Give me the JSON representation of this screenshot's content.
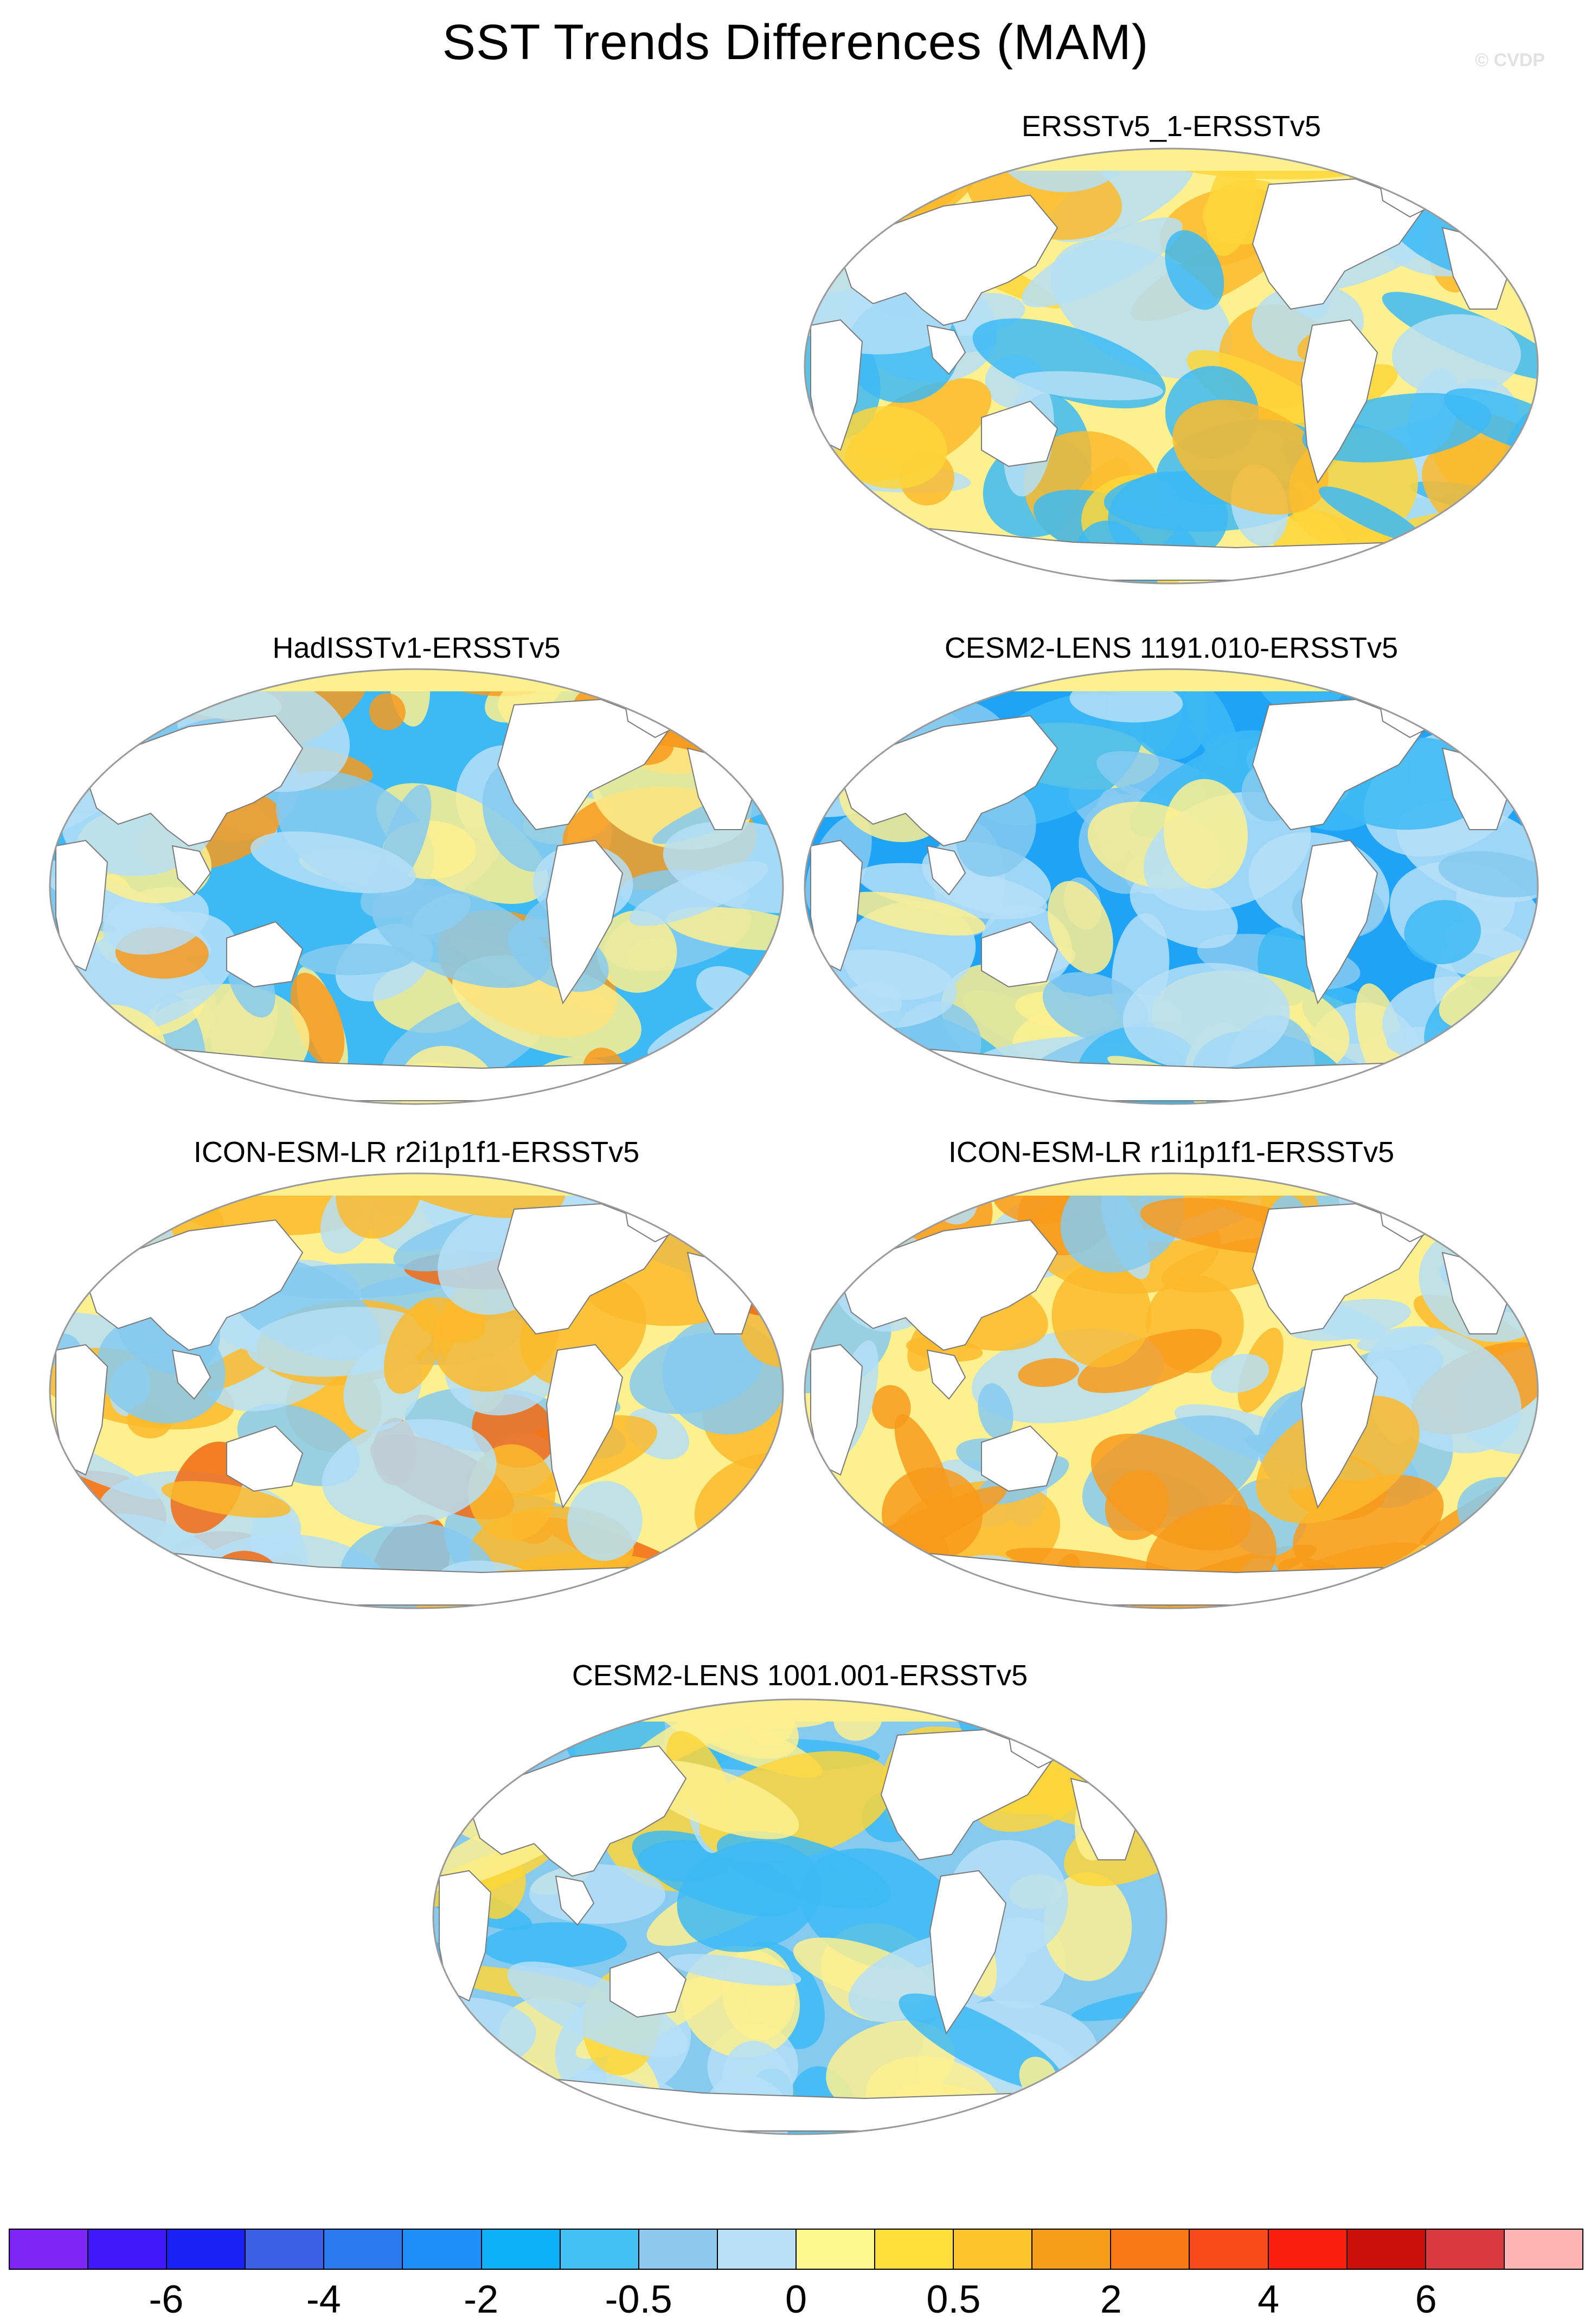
{
  "figure": {
    "title": "SST Trends Differences (MAM)",
    "watermark": "© CVDP"
  },
  "panels": [
    {
      "id": "p1",
      "label": "ERSSTv5_1-ERSSTv5",
      "dominant_signal": "warm",
      "colors": [
        "#fdf08f",
        "#fdd63a",
        "#fbba2c",
        "#b5dff7",
        "#3dbaf5"
      ]
    },
    {
      "id": "p2",
      "label": "HadISSTv1-ERSSTv5",
      "dominant_signal": "cool",
      "colors": [
        "#3dbaf5",
        "#86caf0",
        "#b5dff7",
        "#fdf08f",
        "#f89a1c"
      ]
    },
    {
      "id": "p3",
      "label": "CESM2-LENS 1191.010-ERSSTv5",
      "dominant_signal": "cool",
      "colors": [
        "#1ea3f7",
        "#3dbaf5",
        "#86caf0",
        "#b5dff7",
        "#fdf08f"
      ]
    },
    {
      "id": "p4",
      "label": "ICON-ESM-LR r2i1p1f1-ERSSTv5",
      "dominant_signal": "mixed",
      "colors": [
        "#fdf08f",
        "#b5dff7",
        "#86caf0",
        "#fbba2c",
        "#f26a12"
      ]
    },
    {
      "id": "p5",
      "label": "ICON-ESM-LR r1i1p1f1-ERSSTv5",
      "dominant_signal": "mixed",
      "colors": [
        "#fdf08f",
        "#fbba2c",
        "#b5dff7",
        "#86caf0",
        "#f89a1c"
      ]
    },
    {
      "id": "p6",
      "label": "CESM2-LENS 1001.001-ERSSTv5",
      "dominant_signal": "cool",
      "colors": [
        "#86caf0",
        "#3dbaf5",
        "#b5dff7",
        "#fdf08f",
        "#fdd63a"
      ]
    }
  ],
  "colorbar": {
    "colors": [
      "#7d25f5",
      "#3f19f9",
      "#1820f5",
      "#3a5ee4",
      "#2a79ee",
      "#1e8ff8",
      "#0db0f9",
      "#45c0f4",
      "#8cc9ec",
      "#b9e0f6",
      "#fff78f",
      "#fedf3c",
      "#fcc32a",
      "#f89d1a",
      "#f97a14",
      "#f8491b",
      "#fa1e0f",
      "#cc0f0b",
      "#d83a3d",
      "#ffb3b3"
    ],
    "tick_labels": [
      "-6",
      "-4",
      "-2",
      "-0.5",
      "0",
      "0.5",
      "2",
      "4",
      "6"
    ]
  }
}
